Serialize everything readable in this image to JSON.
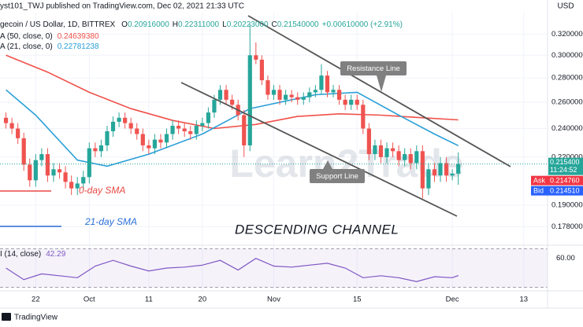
{
  "header": {
    "publisher": "yst101_TWJ published on TradingView.com, Dec 02, 2021 21:33 UTC",
    "symbol": "gecoin / US Dollar, 1D, BITTREX",
    "ohlc": [
      {
        "label": "O",
        "value": "0.20916000"
      },
      {
        "label": "H",
        "value": "0.22311000"
      },
      {
        "label": "L",
        "value": "0.20223000"
      },
      {
        "label": "C",
        "value": "0.21540000"
      }
    ],
    "change": "+0.00610000 (+2.91%)",
    "currency": "USD"
  },
  "chart_data": [
    {
      "type": "candlestick",
      "x": [
        "2021-09-17",
        "2021-09-18",
        "2021-09-19",
        "2021-09-20",
        "2021-09-21",
        "2021-09-22",
        "2021-09-23",
        "2021-09-24",
        "2021-09-25",
        "2021-09-26",
        "2021-09-27",
        "2021-09-28",
        "2021-09-29",
        "2021-09-30",
        "2021-10-01",
        "2021-10-02",
        "2021-10-03",
        "2021-10-04",
        "2021-10-05",
        "2021-10-06",
        "2021-10-07",
        "2021-10-08",
        "2021-10-09",
        "2021-10-10",
        "2021-10-11",
        "2021-10-12",
        "2021-10-13",
        "2021-10-14",
        "2021-10-15",
        "2021-10-16",
        "2021-10-17",
        "2021-10-18",
        "2021-10-19",
        "2021-10-20",
        "2021-10-21",
        "2021-10-22",
        "2021-10-23",
        "2021-10-24",
        "2021-10-25",
        "2021-10-26",
        "2021-10-27",
        "2021-10-28",
        "2021-10-29",
        "2021-10-30",
        "2021-10-31",
        "2021-11-01",
        "2021-11-02",
        "2021-11-03",
        "2021-11-04",
        "2021-11-05",
        "2021-11-06",
        "2021-11-07",
        "2021-11-08",
        "2021-11-09",
        "2021-11-10",
        "2021-11-11",
        "2021-11-12",
        "2021-11-13",
        "2021-11-14",
        "2021-11-15",
        "2021-11-16",
        "2021-11-17",
        "2021-11-18",
        "2021-11-19",
        "2021-11-20",
        "2021-11-21",
        "2021-11-22",
        "2021-11-23",
        "2021-11-24",
        "2021-11-25",
        "2021-11-26",
        "2021-11-27",
        "2021-11-28",
        "2021-11-29",
        "2021-11-30",
        "2021-12-01",
        "2021-12-02"
      ],
      "open": [
        0.248,
        0.244,
        0.24,
        0.233,
        0.215,
        0.205,
        0.218,
        0.222,
        0.208,
        0.212,
        0.21,
        0.204,
        0.2,
        0.203,
        0.207,
        0.226,
        0.224,
        0.228,
        0.238,
        0.245,
        0.248,
        0.244,
        0.24,
        0.236,
        0.228,
        0.226,
        0.232,
        0.23,
        0.236,
        0.242,
        0.24,
        0.238,
        0.236,
        0.242,
        0.244,
        0.252,
        0.262,
        0.27,
        0.262,
        0.258,
        0.25,
        0.228,
        0.3,
        0.296,
        0.278,
        0.266,
        0.27,
        0.262,
        0.266,
        0.264,
        0.262,
        0.264,
        0.268,
        0.27,
        0.282,
        0.268,
        0.27,
        0.262,
        0.258,
        0.262,
        0.258,
        0.24,
        0.222,
        0.228,
        0.22,
        0.226,
        0.224,
        0.218,
        0.222,
        0.216,
        0.224,
        0.2,
        0.212,
        0.208,
        0.216,
        0.208,
        0.2092
      ],
      "high": [
        0.252,
        0.248,
        0.244,
        0.237,
        0.219,
        0.222,
        0.226,
        0.226,
        0.216,
        0.216,
        0.214,
        0.208,
        0.207,
        0.211,
        0.23,
        0.23,
        0.232,
        0.242,
        0.249,
        0.252,
        0.252,
        0.248,
        0.244,
        0.24,
        0.232,
        0.236,
        0.236,
        0.24,
        0.246,
        0.246,
        0.244,
        0.242,
        0.246,
        0.248,
        0.256,
        0.266,
        0.274,
        0.274,
        0.266,
        0.262,
        0.254,
        0.33,
        0.312,
        0.3,
        0.282,
        0.274,
        0.274,
        0.27,
        0.27,
        0.268,
        0.268,
        0.272,
        0.274,
        0.292,
        0.286,
        0.274,
        0.274,
        0.266,
        0.266,
        0.266,
        0.262,
        0.244,
        0.232,
        0.232,
        0.23,
        0.23,
        0.228,
        0.226,
        0.226,
        0.228,
        0.228,
        0.216,
        0.216,
        0.22,
        0.22,
        0.212,
        0.2231
      ],
      "low": [
        0.24,
        0.236,
        0.229,
        0.211,
        0.201,
        0.201,
        0.214,
        0.204,
        0.204,
        0.206,
        0.2,
        0.196,
        0.196,
        0.199,
        0.203,
        0.22,
        0.22,
        0.224,
        0.234,
        0.241,
        0.24,
        0.236,
        0.232,
        0.224,
        0.222,
        0.222,
        0.226,
        0.226,
        0.232,
        0.236,
        0.234,
        0.232,
        0.232,
        0.238,
        0.24,
        0.248,
        0.258,
        0.258,
        0.254,
        0.246,
        0.22,
        0.224,
        0.292,
        0.274,
        0.262,
        0.262,
        0.258,
        0.258,
        0.26,
        0.258,
        0.258,
        0.26,
        0.264,
        0.266,
        0.264,
        0.264,
        0.258,
        0.254,
        0.254,
        0.254,
        0.236,
        0.218,
        0.218,
        0.216,
        0.216,
        0.22,
        0.214,
        0.214,
        0.212,
        0.212,
        0.194,
        0.196,
        0.204,
        0.204,
        0.204,
        0.205,
        0.2022
      ],
      "close": [
        0.244,
        0.24,
        0.233,
        0.215,
        0.205,
        0.218,
        0.222,
        0.208,
        0.212,
        0.21,
        0.204,
        0.2,
        0.203,
        0.207,
        0.226,
        0.224,
        0.228,
        0.238,
        0.245,
        0.248,
        0.244,
        0.24,
        0.236,
        0.228,
        0.226,
        0.232,
        0.23,
        0.236,
        0.242,
        0.24,
        0.238,
        0.236,
        0.242,
        0.244,
        0.252,
        0.262,
        0.27,
        0.262,
        0.258,
        0.25,
        0.228,
        0.3,
        0.296,
        0.278,
        0.266,
        0.27,
        0.262,
        0.266,
        0.264,
        0.262,
        0.264,
        0.268,
        0.27,
        0.282,
        0.268,
        0.27,
        0.262,
        0.258,
        0.262,
        0.258,
        0.24,
        0.222,
        0.228,
        0.22,
        0.226,
        0.224,
        0.218,
        0.222,
        0.216,
        0.224,
        0.2,
        0.212,
        0.208,
        0.216,
        0.208,
        0.2092,
        0.2154
      ],
      "up_color": "#26a69a",
      "down_color": "#ef5350",
      "ylim": [
        0.169,
        0.355
      ],
      "log_scale": true,
      "yticks": [
        {
          "value": 0.32,
          "label": "0.320000"
        },
        {
          "value": 0.3,
          "label": "0.300000"
        },
        {
          "value": 0.28,
          "label": "0.280000"
        },
        {
          "value": 0.26,
          "label": "0.260000"
        },
        {
          "value": 0.24,
          "label": "0.240000"
        },
        {
          "value": 0.22,
          "label": "0.220000"
        },
        {
          "value": 0.19,
          "label": "0.190000"
        },
        {
          "value": 0.178,
          "label": "0.178000"
        }
      ],
      "xlim": [
        "2021-09-16",
        "2021-12-17"
      ],
      "xticks": [
        {
          "value": "2021-09-22",
          "label": "22"
        },
        {
          "value": "2021-10-01",
          "label": "Oct"
        },
        {
          "value": "2021-10-11",
          "label": "11"
        },
        {
          "value": "2021-10-20",
          "label": "20"
        },
        {
          "value": "2021-11-01",
          "label": "Nov"
        },
        {
          "value": "2021-11-15",
          "label": "15"
        },
        {
          "value": "2021-12-01",
          "label": "Dec"
        },
        {
          "value": "2021-12-13",
          "label": "13"
        }
      ],
      "grid": true,
      "overlays": [
        {
          "name": "A (50, close, 0)",
          "color": "#f0504a",
          "x": [
            "2021-09-17",
            "2021-09-24",
            "2021-10-01",
            "2021-10-08",
            "2021-10-15",
            "2021-10-22",
            "2021-10-29",
            "2021-11-05",
            "2021-11-12",
            "2021-11-19",
            "2021-11-26",
            "2021-12-02"
          ],
          "values": [
            0.3,
            0.285,
            0.268,
            0.255,
            0.246,
            0.24,
            0.243,
            0.249,
            0.251,
            0.25,
            0.248,
            0.2463938
          ],
          "last_label": "0.24639380"
        },
        {
          "name": "A (21, close, 0)",
          "color": "#2a9fd8",
          "x": [
            "2021-09-17",
            "2021-09-22",
            "2021-09-29",
            "2021-10-04",
            "2021-10-11",
            "2021-10-20",
            "2021-10-28",
            "2021-11-08",
            "2021-11-15",
            "2021-11-22",
            "2021-11-28",
            "2021-12-02"
          ],
          "values": [
            0.27,
            0.25,
            0.218,
            0.214,
            0.222,
            0.236,
            0.255,
            0.266,
            0.268,
            0.25,
            0.236,
            0.22781238
          ],
          "last_label": "0.22781238"
        }
      ],
      "annotations": {
        "resistance": "Resistance Line",
        "support": "Support Line",
        "pattern": "DESCENDING CHANNEL",
        "sma50_note": "0-day SMA",
        "sma21_note": "21-day SMA"
      },
      "watermark": "Learn2Trade",
      "price_tags": {
        "last": "0.215400",
        "countdown": "11:24:52",
        "ask_label": "Ask",
        "ask": "0.214760",
        "bid_label": "Bid",
        "bid": "0.214510"
      }
    },
    {
      "type": "line",
      "name": "I (14, close)",
      "color": "#7e57c2",
      "x": [
        "2021-09-17",
        "2021-09-20",
        "2021-09-23",
        "2021-09-26",
        "2021-09-29",
        "2021-10-02",
        "2021-10-05",
        "2021-10-08",
        "2021-10-11",
        "2021-10-14",
        "2021-10-17",
        "2021-10-20",
        "2021-10-23",
        "2021-10-26",
        "2021-10-29",
        "2021-11-01",
        "2021-11-04",
        "2021-11-07",
        "2021-11-10",
        "2021-11-13",
        "2021-11-16",
        "2021-11-19",
        "2021-11-22",
        "2021-11-25",
        "2021-11-28",
        "2021-12-01",
        "2021-12-02"
      ],
      "values": [
        50,
        38,
        44,
        42,
        40,
        52,
        58,
        52,
        47,
        50,
        51,
        53,
        58,
        48,
        60,
        52,
        51,
        53,
        55,
        50,
        40,
        42,
        40,
        36,
        41,
        40,
        42.29
      ],
      "ylim": [
        28,
        72
      ],
      "yticks": [
        {
          "value": 60,
          "label": "60.00"
        }
      ],
      "bands": [
        30,
        70
      ]
    }
  ],
  "footer": {
    "brand": "TradingView"
  }
}
